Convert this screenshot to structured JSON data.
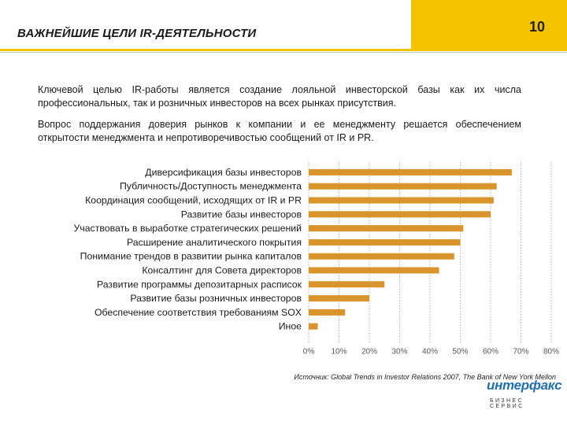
{
  "header": {
    "title": "ВАЖНЕЙШИЕ ЦЕЛИ IR-ДЕЯТЕЛЬНОСТИ",
    "page_number": "10",
    "accent_color": "#f5c400"
  },
  "body": {
    "paragraph1": "Ключевой целью IR-работы является создание лояльной инвесторской базы как их числа профессиональных, так и розничных инвесторов на всех рынках присутствия.",
    "paragraph2": "Вопрос поддержания доверия рынков к компании и ее менеджменту решается обеспечением открытости менеджмента и непротиворечивостью сообщений от IR и PR."
  },
  "chart_data": {
    "type": "bar",
    "orientation": "horizontal",
    "categories": [
      "Диверсификация базы инвесторов",
      "Публичность/Доступность менеджмента",
      "Координация сообщений, исходящих от IR и PR",
      "Развитие базы инвесторов",
      "Участвовать в выработке стратегических решений",
      "Расширение аналитического покрытия",
      "Понимание трендов в развитии рынка капиталов",
      "Консалтинг для Совета директоров",
      "Развитие программы депозитарных расписок",
      "Развитие базы розничных инвесторов",
      "Обеспечение соответствия требованиям SOX",
      "Иное"
    ],
    "values": [
      67,
      62,
      61,
      60,
      51,
      50,
      48,
      43,
      25,
      20,
      12,
      3
    ],
    "xlim": [
      0,
      80
    ],
    "x_tick_labels": [
      "0%",
      "10%",
      "20%",
      "30%",
      "40%",
      "50%",
      "60%",
      "70%",
      "80%"
    ],
    "grid": "vertical dotted",
    "bar_color": "#d9952c"
  },
  "footer": {
    "source": "Источник: Global Trends in Investor Relations 2007, The Bank of New York Mellon",
    "logo_top": "интерфакс",
    "logo_bottom": "БИЗНЕС СЕРВИС"
  }
}
